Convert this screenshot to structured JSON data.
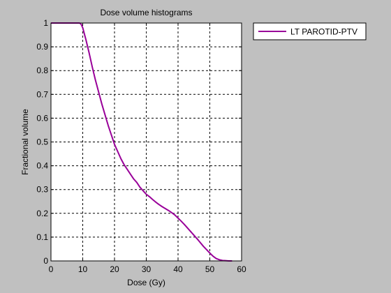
{
  "colors": {
    "figure_background": "#c0c0c0",
    "axes_background": "#ffffff",
    "series_line": "#990099"
  },
  "chart_data": {
    "type": "line",
    "title": "Dose volume histograms",
    "xlabel": "Dose (Gy)",
    "ylabel": "Fractional volume",
    "xlim": [
      0,
      60
    ],
    "ylim": [
      0,
      1
    ],
    "xticks": [
      0,
      10,
      20,
      30,
      40,
      50,
      60
    ],
    "yticks": [
      0,
      0.1,
      0.2,
      0.3,
      0.4,
      0.5,
      0.6,
      0.7,
      0.8,
      0.9,
      1
    ],
    "xtick_labels": [
      "0",
      "10",
      "20",
      "30",
      "40",
      "50",
      "60"
    ],
    "ytick_labels": [
      "0",
      "0.1",
      "0.2",
      "0.3",
      "0.4",
      "0.5",
      "0.6",
      "0.7",
      "0.8",
      "0.9",
      "1"
    ],
    "grid": true,
    "legend_position": "outside-top-right",
    "series": [
      {
        "name": "LT PAROTID-PTV",
        "color": "#990099",
        "x": [
          0,
          9,
          9.5,
          10,
          10.5,
          11,
          12,
          13,
          14,
          15,
          16,
          17,
          18,
          19,
          20,
          21,
          22,
          23,
          24,
          25,
          26,
          27,
          28,
          29,
          30,
          31,
          32,
          33,
          34,
          35,
          36,
          37,
          38,
          39,
          40,
          41,
          42,
          43,
          44,
          45,
          46,
          47,
          48,
          49,
          50,
          51,
          52,
          53,
          54,
          55,
          56,
          57
        ],
        "y": [
          1,
          1,
          0.995,
          0.98,
          0.955,
          0.93,
          0.875,
          0.815,
          0.76,
          0.71,
          0.66,
          0.615,
          0.57,
          0.53,
          0.49,
          0.46,
          0.43,
          0.405,
          0.385,
          0.365,
          0.345,
          0.33,
          0.31,
          0.295,
          0.28,
          0.27,
          0.258,
          0.247,
          0.237,
          0.228,
          0.22,
          0.212,
          0.203,
          0.193,
          0.18,
          0.167,
          0.153,
          0.138,
          0.123,
          0.108,
          0.093,
          0.077,
          0.061,
          0.047,
          0.033,
          0.02,
          0.01,
          0.005,
          0.002,
          0.001,
          0,
          0
        ]
      }
    ]
  }
}
